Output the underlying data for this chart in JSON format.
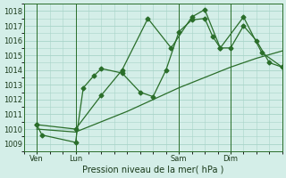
{
  "title": "Pression niveau de la mer( hPa )",
  "bg_color": "#d4eee8",
  "grid_color": "#a8d4c8",
  "line_color": "#2a6e2a",
  "ylim": [
    1008.5,
    1018.5
  ],
  "yticks": [
    1009,
    1010,
    1011,
    1012,
    1013,
    1014,
    1015,
    1016,
    1017,
    1018
  ],
  "xlim": [
    0,
    100
  ],
  "xtick_labels": [
    "Ven",
    "Lun",
    "Sam",
    "Dim"
  ],
  "xtick_positions": [
    5,
    20,
    60,
    80
  ],
  "vline_positions": [
    5,
    20,
    60,
    80
  ],
  "series1_x": [
    5,
    7,
    20,
    23,
    27,
    30,
    38,
    45,
    50,
    55,
    60,
    65,
    70,
    73,
    76,
    80,
    85,
    90,
    95,
    100
  ],
  "series1_y": [
    1010.3,
    1009.6,
    1009.1,
    1012.8,
    1013.6,
    1014.1,
    1013.8,
    1012.5,
    1012.2,
    1014.0,
    1016.6,
    1017.4,
    1017.5,
    1016.3,
    1015.5,
    1015.5,
    1017.0,
    1016.0,
    1014.5,
    1014.2
  ],
  "series2_x": [
    5,
    20,
    30,
    38,
    48,
    57,
    65,
    70,
    76,
    85,
    92,
    100
  ],
  "series2_y": [
    1010.3,
    1010.0,
    1012.3,
    1014.0,
    1017.5,
    1015.5,
    1017.6,
    1018.1,
    1015.5,
    1017.6,
    1015.2,
    1014.2
  ],
  "series3_x": [
    5,
    20,
    30,
    40,
    50,
    60,
    70,
    80,
    90,
    100
  ],
  "series3_y": [
    1010.0,
    1009.8,
    1010.5,
    1011.2,
    1012.0,
    1012.8,
    1013.5,
    1014.2,
    1014.8,
    1015.3
  ],
  "marker": "D",
  "markersize": 2.5,
  "fontsize_ticks": 6,
  "fontsize_label": 7
}
